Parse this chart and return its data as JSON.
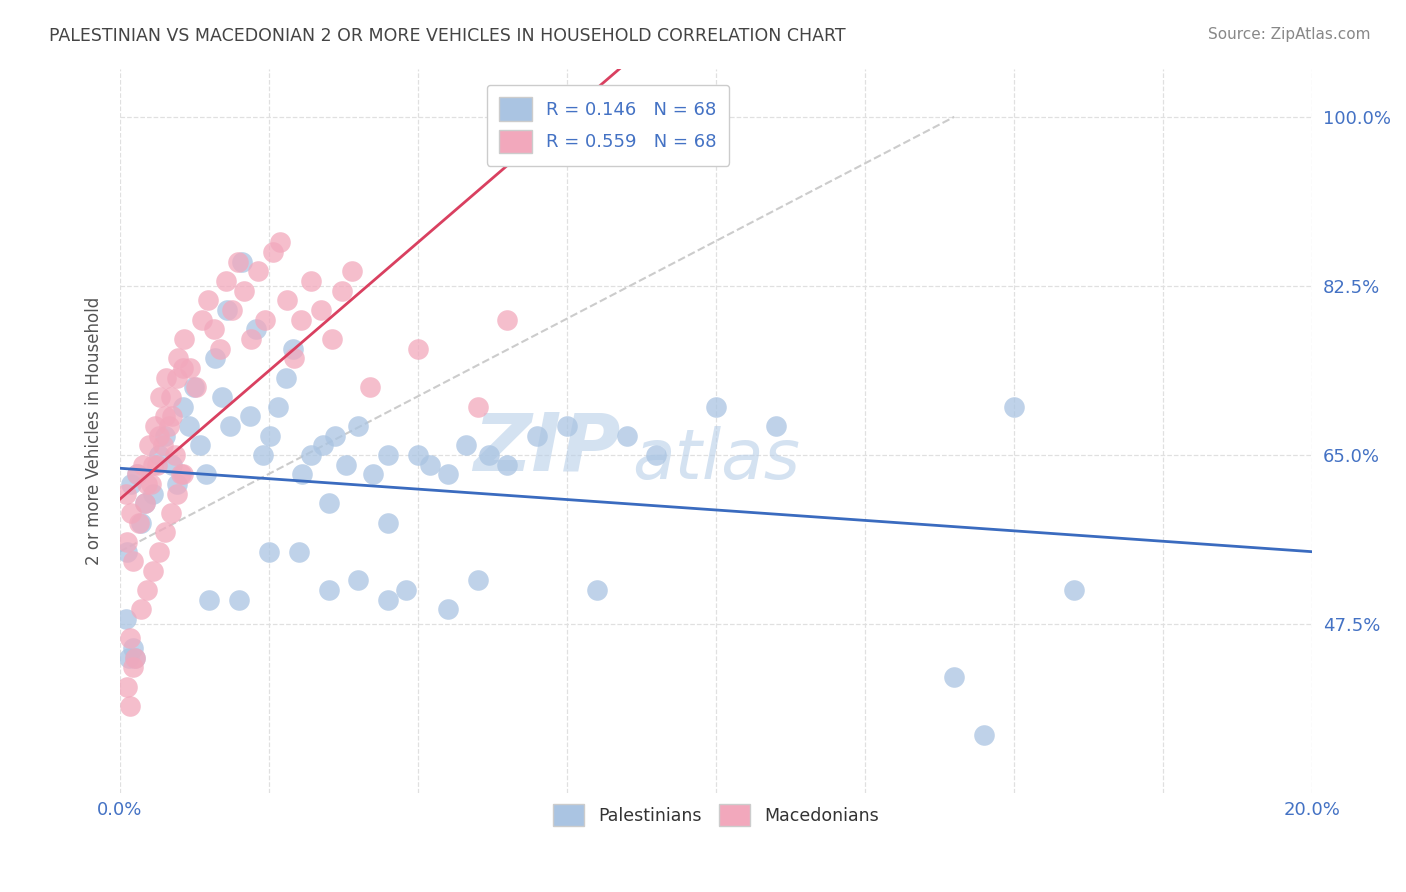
{
  "title": "PALESTINIAN VS MACEDONIAN 2 OR MORE VEHICLES IN HOUSEHOLD CORRELATION CHART",
  "source": "Source: ZipAtlas.com",
  "ylabel": "2 or more Vehicles in Household",
  "xlim": [
    0.0,
    20.0
  ],
  "ylim": [
    30.0,
    105.0
  ],
  "yticks": [
    47.5,
    65.0,
    82.5,
    100.0
  ],
  "ytick_labels": [
    "47.5%",
    "65.0%",
    "82.5%",
    "100.0%"
  ],
  "xtick_labels": [
    "0.0%",
    "",
    "",
    "",
    "",
    "",
    "",
    "",
    "20.0%"
  ],
  "blue_R": 0.146,
  "blue_N": 68,
  "pink_R": 0.559,
  "pink_N": 68,
  "blue_color": "#aac4e2",
  "pink_color": "#f2a8bc",
  "blue_line_color": "#3a6bbf",
  "pink_line_color": "#d94060",
  "diagonal_color": "#cccccc",
  "watermark_color": "#c5d8ee",
  "background_color": "#ffffff",
  "grid_color": "#e0e0e0",
  "title_color": "#444444",
  "source_color": "#888888",
  "blue_scatter_x": [
    0.18,
    0.35,
    0.12,
    0.28,
    0.42,
    0.55,
    0.65,
    0.75,
    0.88,
    0.95,
    1.05,
    1.15,
    1.25,
    1.35,
    1.45,
    1.6,
    1.72,
    1.85,
    2.05,
    2.18,
    2.28,
    2.4,
    2.52,
    2.65,
    2.78,
    1.8,
    2.9,
    3.05,
    3.2,
    3.4,
    3.6,
    3.8,
    4.0,
    4.25,
    4.5,
    4.8,
    5.0,
    5.2,
    5.5,
    5.8,
    6.0,
    6.2,
    6.5,
    7.0,
    7.5,
    8.0,
    8.5,
    9.0,
    10.0,
    11.0,
    0.15,
    0.25,
    1.5,
    2.0,
    2.5,
    3.0,
    3.5,
    4.0,
    4.5,
    5.5,
    3.5,
    4.5,
    15.0,
    16.0,
    14.0,
    14.5,
    0.1,
    0.22
  ],
  "blue_scatter_y": [
    62.0,
    58.0,
    55.0,
    63.0,
    60.0,
    61.0,
    65.0,
    67.0,
    64.0,
    62.0,
    70.0,
    68.0,
    72.0,
    66.0,
    63.0,
    75.0,
    71.0,
    68.0,
    85.0,
    69.0,
    78.0,
    65.0,
    67.0,
    70.0,
    73.0,
    80.0,
    76.0,
    63.0,
    65.0,
    66.0,
    67.0,
    64.0,
    68.0,
    63.0,
    65.0,
    51.0,
    65.0,
    64.0,
    63.0,
    66.0,
    52.0,
    65.0,
    64.0,
    67.0,
    68.0,
    51.0,
    67.0,
    65.0,
    70.0,
    68.0,
    44.0,
    44.0,
    50.0,
    50.0,
    55.0,
    55.0,
    51.0,
    52.0,
    50.0,
    49.0,
    60.0,
    58.0,
    70.0,
    51.0,
    42.0,
    36.0,
    48.0,
    45.0
  ],
  "pink_scatter_x": [
    0.1,
    0.18,
    0.28,
    0.38,
    0.48,
    0.58,
    0.68,
    0.78,
    0.88,
    0.98,
    1.08,
    1.18,
    1.28,
    1.38,
    1.48,
    1.58,
    1.68,
    1.78,
    1.88,
    1.98,
    2.08,
    2.2,
    2.32,
    2.44,
    2.56,
    2.68,
    2.8,
    2.92,
    3.04,
    3.2,
    3.38,
    3.55,
    3.72,
    3.9,
    0.12,
    0.22,
    0.32,
    0.42,
    0.52,
    0.62,
    0.72,
    0.82,
    0.92,
    1.02,
    0.16,
    0.26,
    0.36,
    0.46,
    0.56,
    0.66,
    0.76,
    0.86,
    0.96,
    1.06,
    0.11,
    0.16,
    0.22,
    0.45,
    0.55,
    0.65,
    0.75,
    0.85,
    0.95,
    1.05,
    4.2,
    5.0,
    6.0,
    6.5
  ],
  "pink_scatter_y": [
    61.0,
    59.0,
    63.0,
    64.0,
    66.0,
    68.0,
    71.0,
    73.0,
    69.0,
    75.0,
    77.0,
    74.0,
    72.0,
    79.0,
    81.0,
    78.0,
    76.0,
    83.0,
    80.0,
    85.0,
    82.0,
    77.0,
    84.0,
    79.0,
    86.0,
    87.0,
    81.0,
    75.0,
    79.0,
    83.0,
    80.0,
    77.0,
    82.0,
    84.0,
    56.0,
    54.0,
    58.0,
    60.0,
    62.0,
    64.0,
    66.0,
    68.0,
    65.0,
    63.0,
    46.0,
    44.0,
    49.0,
    51.0,
    53.0,
    55.0,
    57.0,
    59.0,
    61.0,
    63.0,
    41.0,
    39.0,
    43.0,
    62.0,
    64.0,
    67.0,
    69.0,
    71.0,
    73.0,
    74.0,
    72.0,
    76.0,
    70.0,
    79.0
  ]
}
